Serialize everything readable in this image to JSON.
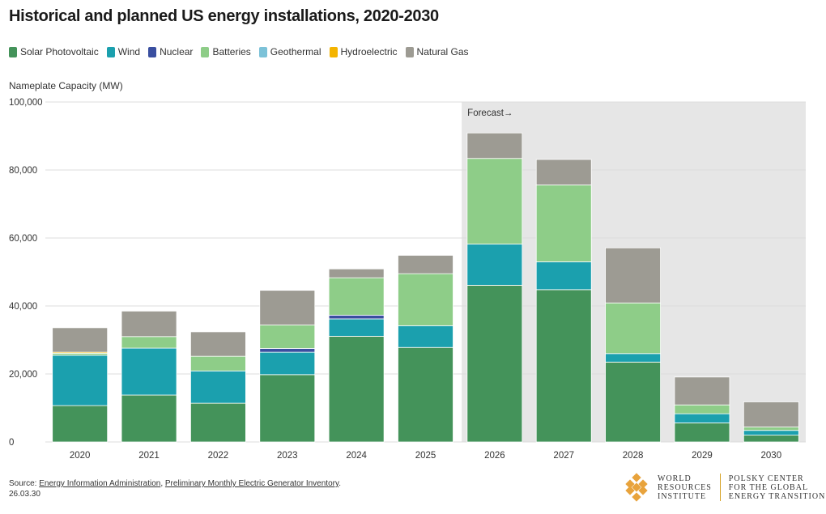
{
  "header": {
    "title": "Historical and planned US energy installations, 2020-2030"
  },
  "legend": [
    {
      "label": "Solar Photovoltaic",
      "color": "#44935a"
    },
    {
      "label": "Wind",
      "color": "#1ba0ae"
    },
    {
      "label": "Nuclear",
      "color": "#3a4fa0"
    },
    {
      "label": "Batteries",
      "color": "#8ecd88"
    },
    {
      "label": "Geothermal",
      "color": "#7cc2d8"
    },
    {
      "label": "Hydroelectric",
      "color": "#f4b400"
    },
    {
      "label": "Natural Gas",
      "color": "#9d9b93"
    }
  ],
  "chart_data": {
    "type": "bar",
    "stacked": true,
    "ylabel": "Nameplate Capacity (MW)",
    "ylim": [
      0,
      100000
    ],
    "yticks": [
      0,
      20000,
      40000,
      60000,
      80000,
      100000
    ],
    "ytick_labels": [
      "0",
      "20,000",
      "40,000",
      "60,000",
      "80,000",
      "100,000"
    ],
    "categories": [
      "2020",
      "2021",
      "2022",
      "2023",
      "2024",
      "2025",
      "2026",
      "2027",
      "2028",
      "2029",
      "2030"
    ],
    "forecast_label": "Forecast→",
    "forecast_start": "2026",
    "series": [
      {
        "name": "Solar Photovoltaic",
        "color": "#44935a",
        "values": [
          10700,
          13800,
          11400,
          19800,
          31100,
          27800,
          46100,
          44800,
          23500,
          5600,
          2000
        ]
      },
      {
        "name": "Wind",
        "color": "#1ba0ae",
        "values": [
          14800,
          13800,
          9500,
          6600,
          5100,
          6400,
          12100,
          8200,
          2500,
          2700,
          1400
        ]
      },
      {
        "name": "Nuclear",
        "color": "#3a4fa0",
        "values": [
          0,
          0,
          0,
          1100,
          1100,
          0,
          0,
          0,
          0,
          0,
          0
        ]
      },
      {
        "name": "Batteries",
        "color": "#8ecd88",
        "values": [
          600,
          3400,
          4300,
          6900,
          11000,
          15300,
          25200,
          22600,
          14900,
          2600,
          1000
        ]
      },
      {
        "name": "Geothermal",
        "color": "#7cc2d8",
        "values": [
          0,
          0,
          0,
          0,
          0,
          0,
          0,
          0,
          0,
          0,
          0
        ]
      },
      {
        "name": "Hydroelectric",
        "color": "#f4b400",
        "values": [
          300,
          0,
          0,
          0,
          0,
          0,
          0,
          0,
          0,
          0,
          0
        ]
      },
      {
        "name": "Natural Gas",
        "color": "#9d9b93",
        "values": [
          7200,
          7500,
          7200,
          10200,
          2600,
          5400,
          7500,
          7500,
          16200,
          8200,
          7400
        ]
      }
    ]
  },
  "footer": {
    "source_prefix": "Source: ",
    "source_link1": "Energy Information Administration",
    "source_sep": ", ",
    "source_link2": "Preliminary Monthly Electric Generator Inventory",
    "source_suffix": ".",
    "date": "26.03.30"
  },
  "logos": {
    "wri_line1": "WORLD",
    "wri_line2": "RESOURCES",
    "wri_line3": "INSTITUTE",
    "polsky_line1": "POLSKY CENTER",
    "polsky_line2": "FOR THE GLOBAL",
    "polsky_line3": "ENERGY TRANSITION"
  }
}
